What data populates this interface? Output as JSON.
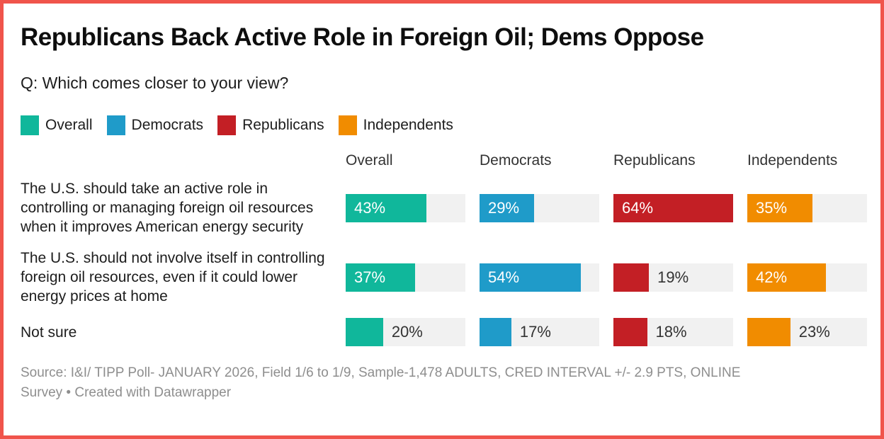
{
  "chart_data": {
    "type": "bar",
    "layout": "split-bars-table: one horizontal bar column per respondent group, shared scale, legend top, grid off",
    "title": "Republicans Back Active Role in Foreign Oil; Dems Oppose",
    "subtitle": "Q: Which comes closer to your view?",
    "columns": [
      "Overall",
      "Democrats",
      "Republicans",
      "Independents"
    ],
    "series_colors": [
      "#10b79b",
      "#1f9bc9",
      "#c31f25",
      "#f18c00"
    ],
    "scale_max": 64,
    "value_suffix": "%",
    "inside_label_min_pct_of_scale": 40,
    "rows": [
      {
        "label": "The U.S. should take an active role in controlling or managing foreign oil resources when it improves American energy security",
        "values": [
          43,
          29,
          64,
          35
        ]
      },
      {
        "label": "The U.S. should not involve itself in controlling foreign oil resources, even if it could lower energy prices at home",
        "values": [
          37,
          54,
          19,
          42
        ]
      },
      {
        "label": "Not sure",
        "values": [
          20,
          17,
          18,
          23
        ]
      }
    ]
  },
  "legend": {
    "items": [
      {
        "label": "Overall",
        "color": "#10b79b"
      },
      {
        "label": "Democrats",
        "color": "#1f9bc9"
      },
      {
        "label": "Republicans",
        "color": "#c31f25"
      },
      {
        "label": "Independents",
        "color": "#f18c00"
      }
    ]
  },
  "footer": {
    "lines": [
      "Source: I&I/ TIPP Poll- JANUARY 2026, Field 1/6 to 1/9, Sample-1,478 ADULTS, CRED INTERVAL +/- 2.9 PTS, ONLINE",
      "Survey • Created with Datawrapper"
    ],
    "full_text": "Source: I&I/ TIPP Poll- JANUARY 2026, Field 1/6 to 1/9, Sample-1,478 ADULTS, CRED INTERVAL +/- 2.9 PTS, ONLINE Survey • Created with Datawrapper"
  },
  "frame": {
    "border_color": "#f0544b",
    "track_color": "#f1f1f1"
  }
}
